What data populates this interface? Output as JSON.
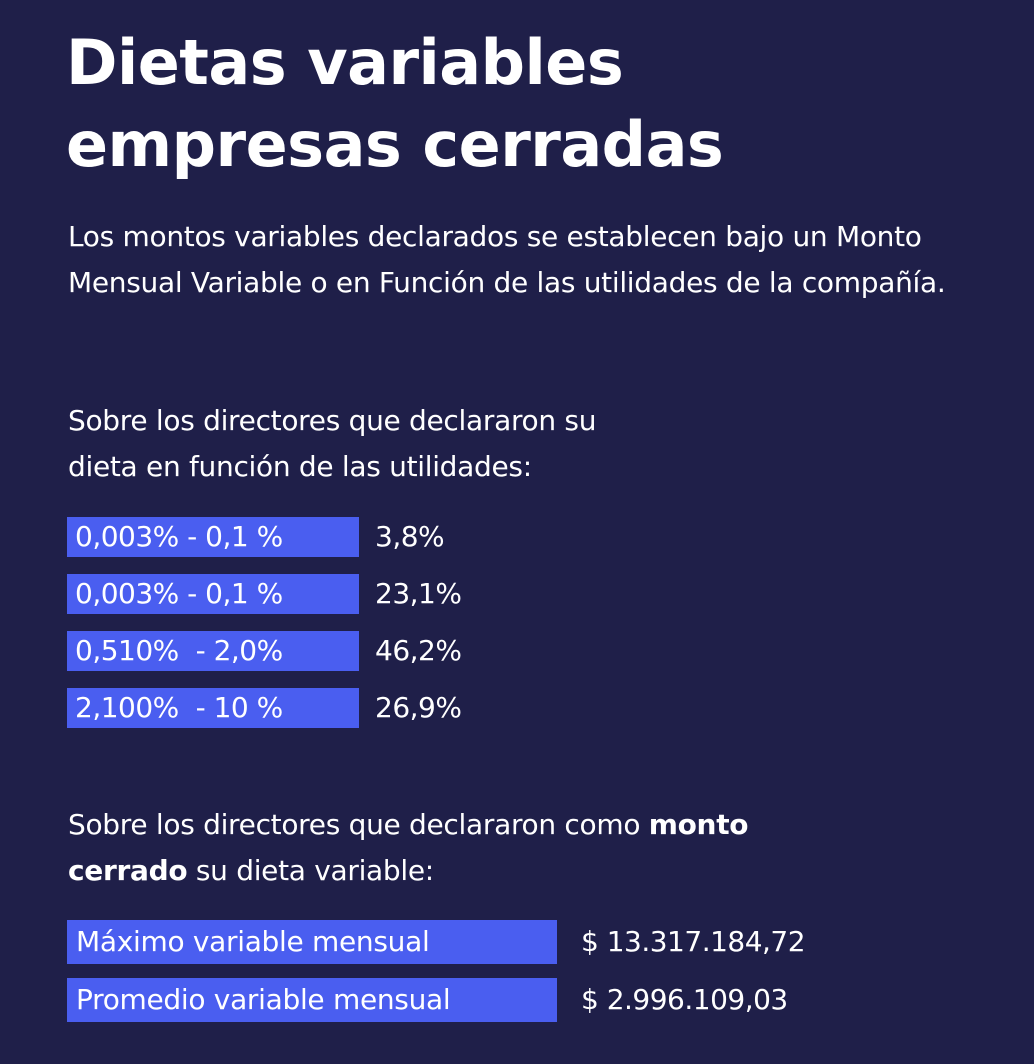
{
  "title": {
    "line1": "Dietas variables",
    "line2": "empresas cerradas"
  },
  "intro": "Los montos variables declarados se establecen bajo un Monto Mensual Variable o en Función de las utilidades de la compañía.",
  "utilidades": {
    "lead_line1": "Sobre los directores que declararon su",
    "lead_line2": "dieta en función de las utilidades:",
    "rows": [
      {
        "range": "0,003% - 0,1 %",
        "value": "3,8%"
      },
      {
        "range": "0,003% - 0,1 %",
        "value": "23,1%"
      },
      {
        "range": "0,510%  - 2,0%",
        "value": "46,2%"
      },
      {
        "range": "2,100%  - 10 %",
        "value": "26,9%"
      }
    ]
  },
  "cerrado": {
    "lead_part1": "Sobre los directores que declararon como ",
    "lead_bold1": "monto",
    "lead_bold2": "cerrado",
    "lead_part2": " su dieta variable:",
    "rows": [
      {
        "label": "Máximo variable mensual",
        "value": "$ 13.317.184,72"
      },
      {
        "label": "Promedio variable mensual",
        "value": "$ 2.996.109,03"
      }
    ]
  },
  "colors": {
    "background": "#1f1f49",
    "accent": "#4a5ef0",
    "text": "#ffffff"
  }
}
